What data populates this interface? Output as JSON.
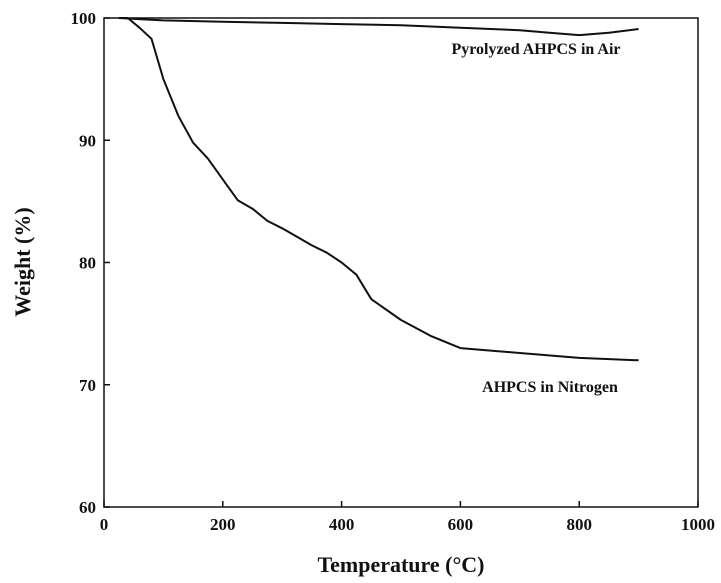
{
  "chart_data": {
    "type": "line",
    "xlabel": "Temperature (°C)",
    "ylabel": "Weight (%)",
    "xlim": [
      0,
      1000
    ],
    "ylim": [
      60,
      100
    ],
    "xticks": [
      "0",
      "200",
      "400",
      "600",
      "800",
      "1000"
    ],
    "yticks": [
      "60",
      "70",
      "80",
      "90",
      "100"
    ],
    "grid": false,
    "line_color": "#111111",
    "series": [
      {
        "name": "Pyrolyzed AHPCS in Air",
        "x": [
          25,
          100,
          200,
          300,
          400,
          500,
          600,
          700,
          750,
          800,
          850,
          900
        ],
        "y": [
          100,
          99.8,
          99.7,
          99.6,
          99.5,
          99.4,
          99.2,
          99.0,
          98.8,
          98.6,
          98.8,
          99.1
        ]
      },
      {
        "name": "AHPCS in Nitrogen",
        "x": [
          25,
          40,
          60,
          80,
          100,
          125,
          150,
          175,
          200,
          225,
          250,
          275,
          300,
          350,
          375,
          400,
          425,
          450,
          500,
          550,
          600,
          700,
          800,
          900
        ],
        "y": [
          100,
          100,
          99.2,
          98.3,
          95,
          92,
          89.8,
          88.5,
          86.8,
          85.1,
          84.4,
          83.4,
          82.8,
          81.4,
          80.8,
          80.0,
          79.0,
          77.0,
          75.3,
          74.0,
          73.0,
          72.6,
          72.2,
          72.0
        ]
      }
    ]
  }
}
